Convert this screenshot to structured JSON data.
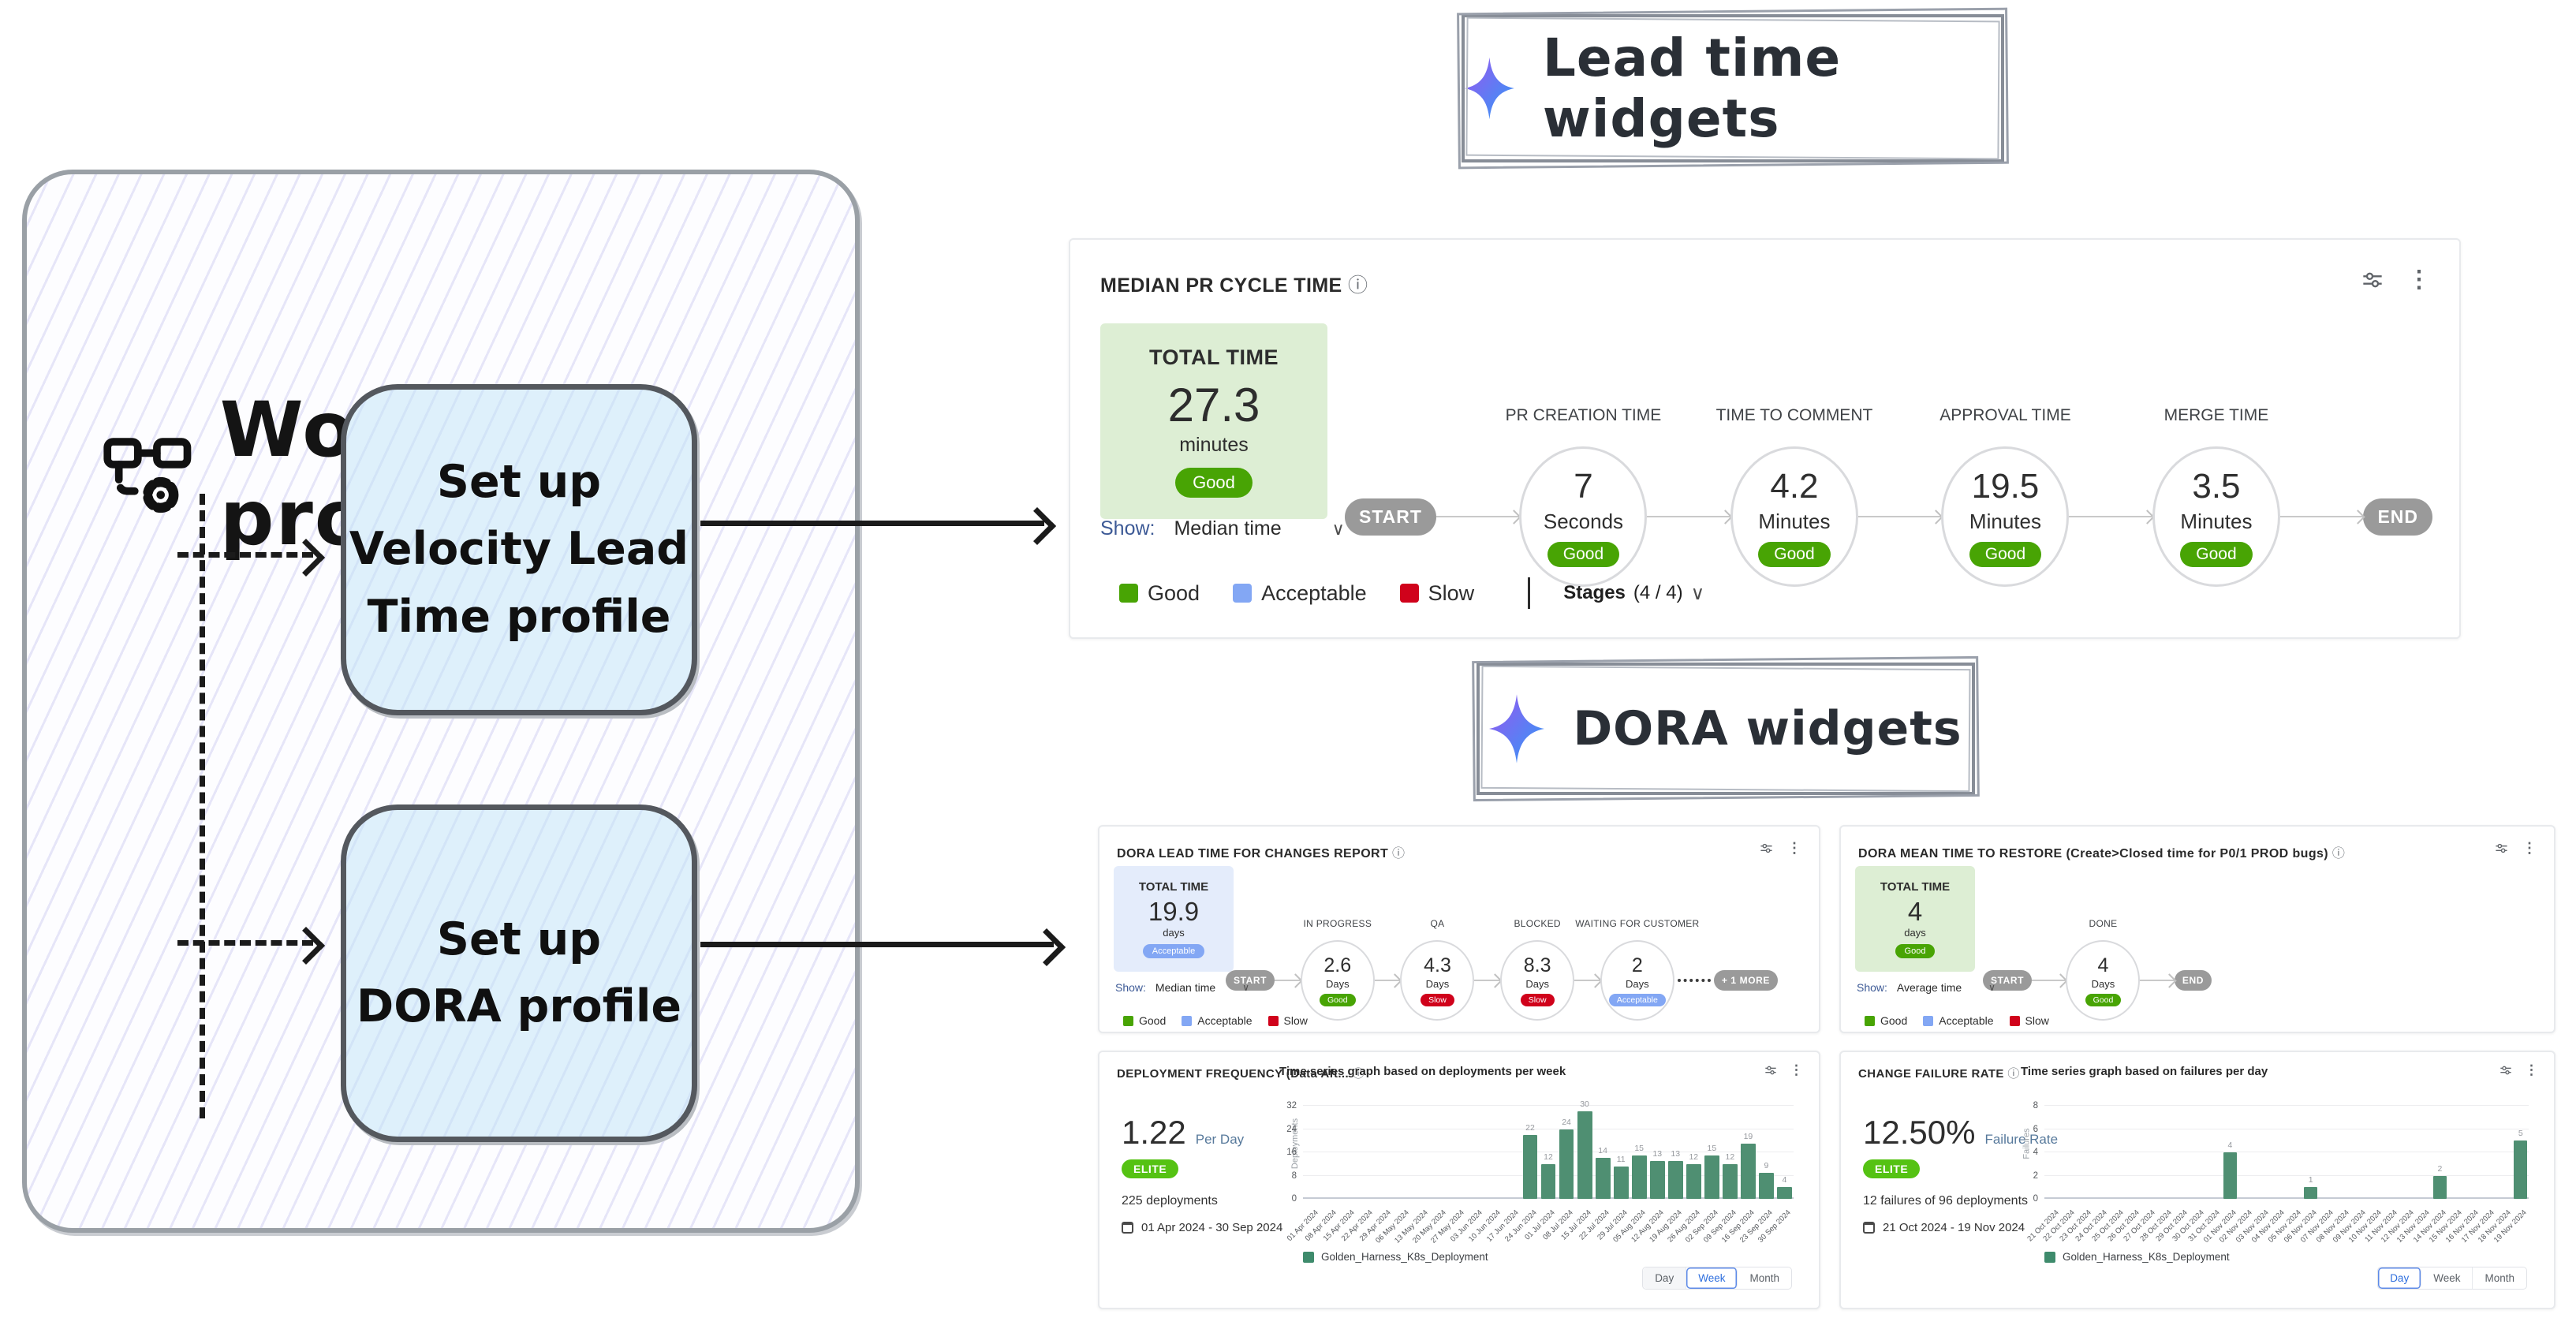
{
  "colors": {
    "good": "#48a404",
    "acceptable": "#83a7f4",
    "slow": "#d0021b",
    "elite": "#55c213",
    "pill_gray": "#9a9a9a",
    "bar_green": "#4f8f72",
    "total_green_bg": "#ddeed4",
    "total_blue_bg": "#e4ecfb"
  },
  "diagram": {
    "title": "Workflow profiles",
    "node_velocity": {
      "line1": "Set up",
      "line2": "Velocity Lead",
      "line3": "Time profile"
    },
    "node_dora": {
      "line1": "Set up",
      "line2": "DORA profile"
    }
  },
  "section_lead": {
    "title": "Lead time widgets"
  },
  "section_dora": {
    "title": "DORA widgets"
  },
  "pr_cycle": {
    "title": "MEDIAN PR CYCLE TIME",
    "info_icon": "ⓘ",
    "total": {
      "label": "TOTAL TIME",
      "value": "27.3",
      "unit": "minutes",
      "badge": "Good"
    },
    "start_label": "START",
    "end_label": "END",
    "stages": [
      {
        "name": "PR CREATION TIME",
        "value": "7",
        "unit": "Seconds",
        "badge": "Good"
      },
      {
        "name": "TIME TO COMMENT",
        "value": "4.2",
        "unit": "Minutes",
        "badge": "Good"
      },
      {
        "name": "APPROVAL TIME",
        "value": "19.5",
        "unit": "Minutes",
        "badge": "Good"
      },
      {
        "name": "MERGE TIME",
        "value": "3.5",
        "unit": "Minutes",
        "badge": "Good"
      }
    ],
    "show_label": "Show:",
    "show_value": "Median time",
    "chevron": "∨",
    "legend": [
      {
        "label": "Good"
      },
      {
        "label": "Acceptable"
      },
      {
        "label": "Slow"
      }
    ],
    "stages_label": "Stages",
    "stages_count": "(4 / 4)"
  },
  "dora_lead": {
    "title": "DORA LEAD TIME FOR CHANGES REPORT",
    "info_icon": "ⓘ",
    "total": {
      "label": "TOTAL TIME",
      "value": "19.9",
      "unit": "days",
      "badge": "Acceptable"
    },
    "start_label": "START",
    "more_label": "+ 1 MORE",
    "stages": [
      {
        "name": "IN PROGRESS",
        "value": "2.6",
        "unit": "Days",
        "badge": "Good"
      },
      {
        "name": "QA",
        "value": "4.3",
        "unit": "Days",
        "badge": "Slow"
      },
      {
        "name": "BLOCKED",
        "value": "8.3",
        "unit": "Days",
        "badge": "Slow"
      },
      {
        "name": "WAITING FOR CUSTOMER",
        "value": "2",
        "unit": "Days",
        "badge": "Acceptable"
      }
    ],
    "show_label": "Show:",
    "show_value": "Median time",
    "chevron": "∨",
    "legend": [
      {
        "label": "Good"
      },
      {
        "label": "Acceptable"
      },
      {
        "label": "Slow"
      }
    ]
  },
  "dora_mttr": {
    "title": "DORA MEAN TIME TO RESTORE (Create>Closed time for P0/1 PROD bugs)",
    "info_icon": "ⓘ",
    "total": {
      "label": "TOTAL TIME",
      "value": "4",
      "unit": "days",
      "badge": "Good"
    },
    "start_label": "START",
    "end_label": "END",
    "stages": [
      {
        "name": "DONE",
        "value": "4",
        "unit": "Days",
        "badge": "Good"
      }
    ],
    "show_label": "Show:",
    "show_value": "Average time",
    "chevron": "∨",
    "legend": [
      {
        "label": "Good"
      },
      {
        "label": "Acceptable"
      },
      {
        "label": "Slow"
      }
    ]
  },
  "deploy_freq": {
    "title": "DEPLOYMENT FREQUENCY (Data Aft...",
    "info_icon": "ⓘ",
    "metric_value": "1.22",
    "metric_suffix": "Per Day",
    "badge": "ELITE",
    "count_text": "225 deployments",
    "date_range": "01 Apr 2024 - 30 Sep 2024",
    "toggle": [
      "Day",
      "Week",
      "Month"
    ],
    "toggle_active": "Week"
  },
  "change_failure": {
    "title": "CHANGE FAILURE RATE",
    "info_icon": "ⓘ",
    "metric_value": "12.50%",
    "metric_suffix": "Failure Rate",
    "badge": "ELITE",
    "count_text": "12 failures of 96 deployments",
    "date_range": "21 Oct 2024 - 19 Nov 2024",
    "toggle": [
      "Day",
      "Week",
      "Month"
    ],
    "toggle_active": "Day"
  },
  "chart_data": [
    {
      "type": "bar",
      "title": "Time series graph based on deployments per week",
      "ylabel": "Deployments",
      "yticks": [
        0,
        8,
        16,
        24,
        32
      ],
      "ymax": 32,
      "legend": "Golden_Harness_K8s_Deployment",
      "categories": [
        "01 Apr 2024",
        "08 Apr 2024",
        "15 Apr 2024",
        "22 Apr 2024",
        "29 Apr 2024",
        "06 May 2024",
        "13 May 2024",
        "20 May 2024",
        "27 May 2024",
        "03 Jun 2024",
        "10 Jun 2024",
        "17 Jun 2024",
        "24 Jun 2024",
        "01 Jul 2024",
        "08 Jul 2024",
        "15 Jul 2024",
        "22 Jul 2024",
        "29 Jul 2024",
        "05 Aug 2024",
        "12 Aug 2024",
        "19 Aug 2024",
        "26 Aug 2024",
        "02 Sep 2024",
        "09 Sep 2024",
        "16 Sep 2024",
        "23 Sep 2024",
        "30 Sep 2024"
      ],
      "values": [
        0,
        0,
        0,
        0,
        0,
        0,
        0,
        0,
        0,
        0,
        0,
        0,
        22,
        12,
        24,
        30,
        14,
        11,
        15,
        13,
        13,
        12,
        15,
        12,
        19,
        9,
        4
      ]
    },
    {
      "type": "bar",
      "title": "Time series graph based on failures per day",
      "ylabel": "Failures",
      "yticks": [
        0,
        2,
        4,
        6,
        8
      ],
      "ymax": 8,
      "legend": "Golden_Harness_K8s_Deployment",
      "categories": [
        "21 Oct 2024",
        "22 Oct 2024",
        "23 Oct 2024",
        "24 Oct 2024",
        "25 Oct 2024",
        "26 Oct 2024",
        "27 Oct 2024",
        "28 Oct 2024",
        "29 Oct 2024",
        "30 Oct 2024",
        "31 Oct 2024",
        "01 Nov 2024",
        "02 Nov 2024",
        "03 Nov 2024",
        "04 Nov 2024",
        "05 Nov 2024",
        "06 Nov 2024",
        "07 Nov 2024",
        "08 Nov 2024",
        "09 Nov 2024",
        "10 Nov 2024",
        "11 Nov 2024",
        "12 Nov 2024",
        "13 Nov 2024",
        "14 Nov 2024",
        "15 Nov 2024",
        "16 Nov 2024",
        "17 Nov 2024",
        "18 Nov 2024",
        "19 Nov 2024"
      ],
      "values": [
        0,
        0,
        0,
        0,
        0,
        0,
        0,
        0,
        0,
        0,
        0,
        4,
        0,
        0,
        0,
        0,
        1,
        0,
        0,
        0,
        0,
        0,
        0,
        0,
        2,
        0,
        0,
        0,
        0,
        5
      ]
    }
  ]
}
